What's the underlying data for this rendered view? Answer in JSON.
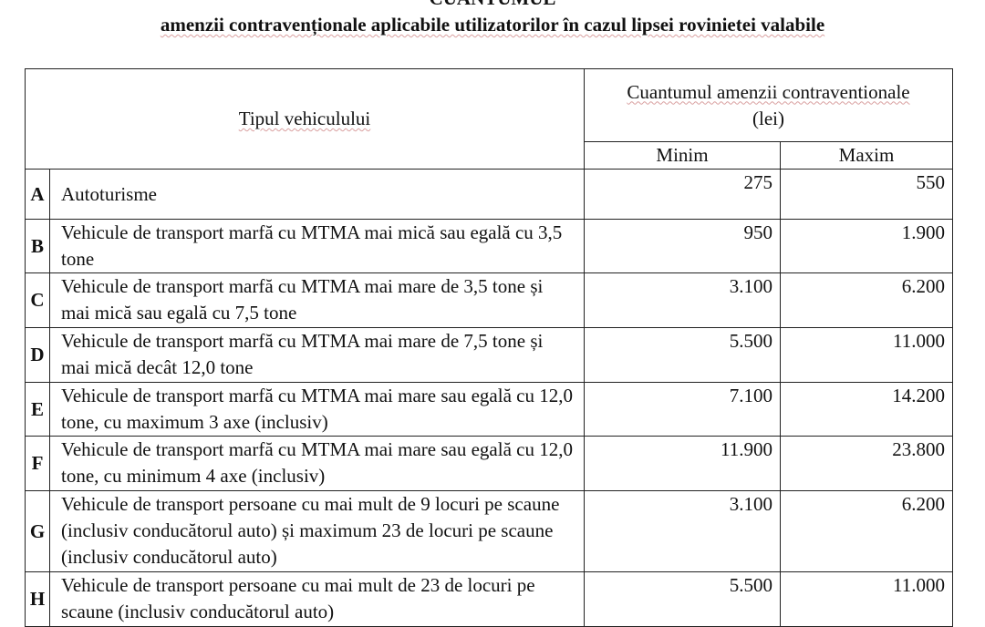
{
  "title": "CUANTUMUL",
  "subtitle": "amenzii contravenționale aplicabile utilizatorilor în cazul lipsei rovinietei valabile",
  "table": {
    "col_vehicle": "Tipul vehiculului",
    "col_fine": "Cuantumul amenzii contraventionale",
    "col_fine_unit": "(lei)",
    "col_min": "Minim",
    "col_max": "Maxim",
    "rows": [
      {
        "cat": "A",
        "desc": "Autoturisme",
        "min": "275",
        "max": "550"
      },
      {
        "cat": "B",
        "desc": "Vehicule de transport marfă cu MTMA mai mică sau egală cu 3,5 tone",
        "min": "950",
        "max": "1.900"
      },
      {
        "cat": "C",
        "desc": "Vehicule de transport marfă cu MTMA mai mare de 3,5 tone și mai mică sau egală cu 7,5 tone",
        "min": "3.100",
        "max": "6.200"
      },
      {
        "cat": "D",
        "desc": "Vehicule de transport marfă cu MTMA mai mare de 7,5 tone și mai mică decât 12,0 tone",
        "min": "5.500",
        "max": "11.000"
      },
      {
        "cat": "E",
        "desc": "Vehicule de transport marfă cu MTMA mai mare sau egală cu 12,0 tone, cu maximum 3 axe (inclusiv)",
        "min": "7.100",
        "max": "14.200"
      },
      {
        "cat": "F",
        "desc": "Vehicule de transport marfă cu MTMA mai mare sau egală cu 12,0 tone, cu minimum 4 axe (inclusiv)",
        "min": "11.900",
        "max": "23.800"
      },
      {
        "cat": "G",
        "desc": "Vehicule de transport persoane cu mai mult de 9 locuri pe scaune (inclusiv conducătorul auto) și maximum 23 de locuri pe scaune (inclusiv conducătorul auto)",
        "min": "3.100",
        "max": "6.200"
      },
      {
        "cat": "H",
        "desc": "Vehicule de transport persoane cu mai mult de 23 de locuri pe scaune (inclusiv conducătorul auto)",
        "min": "5.500",
        "max": "11.000"
      }
    ]
  }
}
